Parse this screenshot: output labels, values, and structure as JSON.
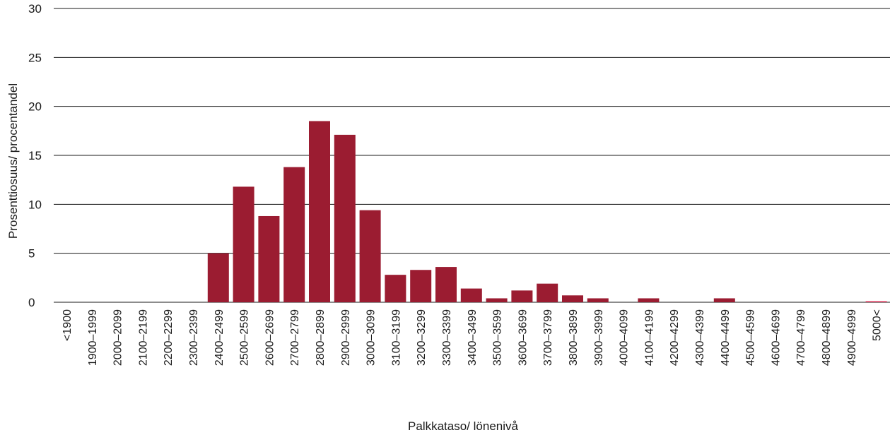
{
  "chart_data": {
    "type": "bar",
    "title": "",
    "xlabel": "Palkkataso/ lönenivå",
    "ylabel": "Prosenttiosuus/ procentandel",
    "ylim": [
      0,
      30
    ],
    "yticks": [
      0,
      5,
      10,
      15,
      20,
      25,
      30
    ],
    "grid": true,
    "bar_color": "#9b1c31",
    "highlight_color": "#d6204a",
    "categories": [
      "<1900",
      "1900–1999",
      "2000–2099",
      "2100–2199",
      "2200–2299",
      "2300–2399",
      "2400–2499",
      "2500–2599",
      "2600–2699",
      "2700–2799",
      "2800–2899",
      "2900–2999",
      "3000–3099",
      "3100–3199",
      "3200–3299",
      "3300–3399",
      "3400–3499",
      "3500–3599",
      "3600–3699",
      "3700–3799",
      "3800–3899",
      "3900–3999",
      "4000–4099",
      "4100–4199",
      "4200–4299",
      "4300–4399",
      "4400–4499",
      "4500–4599",
      "4600–4699",
      "4700–4799",
      "4800–4899",
      "4900–4999",
      "5000<"
    ],
    "values": [
      0,
      0,
      0,
      0,
      0,
      0,
      5.0,
      11.8,
      8.8,
      13.8,
      18.5,
      17.1,
      9.4,
      2.8,
      3.3,
      3.6,
      1.4,
      0.4,
      1.2,
      1.9,
      0.7,
      0.4,
      0,
      0.4,
      0,
      0,
      0.4,
      0,
      0,
      0,
      0,
      0,
      0.1
    ]
  }
}
